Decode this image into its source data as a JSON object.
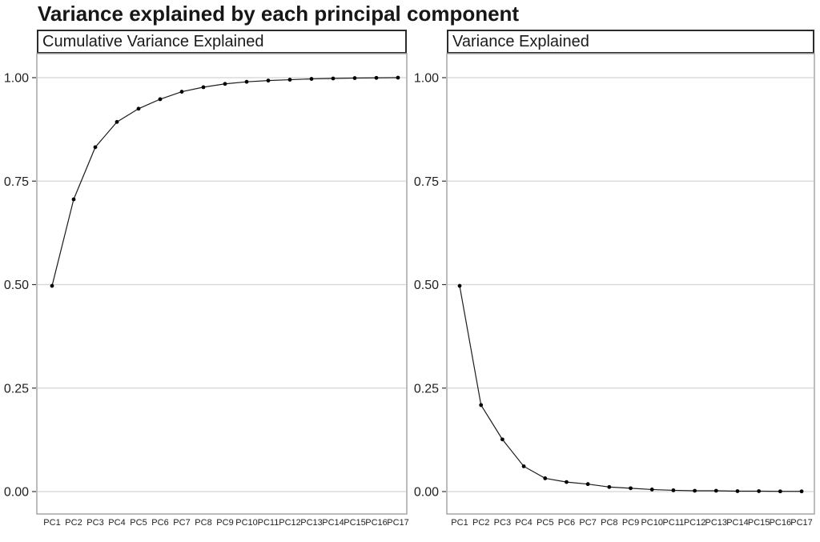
{
  "title": "Variance explained by each principal component",
  "colors": {
    "line": "#1c1c1c",
    "point": "#000000",
    "gridline": "#d4d4d4",
    "panel_border": "#a6a6a6",
    "strip_border": "#2b2b2b",
    "tick": "#333333",
    "text": "#1f1f1f",
    "title_text": "#171717"
  },
  "chart_data": [
    {
      "type": "line",
      "title": "Cumulative Variance Explained",
      "categories": [
        "PC1",
        "PC2",
        "PC3",
        "PC4",
        "PC5",
        "PC6",
        "PC7",
        "PC8",
        "PC9",
        "PC10",
        "PC11",
        "PC12",
        "PC13",
        "PC14",
        "PC15",
        "PC16",
        "PC17"
      ],
      "values": [
        0.497,
        0.706,
        0.832,
        0.893,
        0.925,
        0.948,
        0.966,
        0.977,
        0.985,
        0.99,
        0.993,
        0.995,
        0.997,
        0.998,
        0.999,
        0.9995,
        1.0
      ],
      "xlabel": "",
      "ylabel": "",
      "ylim": [
        0,
        1.04
      ],
      "yticks": [
        0,
        0.25,
        0.5,
        0.75,
        1
      ],
      "ytick_labels": [
        "0.00",
        "0.25",
        "0.50",
        "0.75",
        "1.00"
      ],
      "grid": true,
      "legend": "none",
      "marker": "point"
    },
    {
      "type": "line",
      "title": "Variance Explained",
      "categories": [
        "PC1",
        "PC2",
        "PC3",
        "PC4",
        "PC5",
        "PC6",
        "PC7",
        "PC8",
        "PC9",
        "PC10",
        "PC11",
        "PC12",
        "PC13",
        "PC14",
        "PC15",
        "PC16",
        "PC17"
      ],
      "values": [
        0.497,
        0.209,
        0.126,
        0.061,
        0.032,
        0.023,
        0.018,
        0.011,
        0.008,
        0.005,
        0.003,
        0.002,
        0.002,
        0.001,
        0.001,
        0.0005,
        0.0005
      ],
      "xlabel": "",
      "ylabel": "",
      "ylim": [
        0,
        1.04
      ],
      "yticks": [
        0,
        0.25,
        0.5,
        0.75,
        1
      ],
      "ytick_labels": [
        "0.00",
        "0.25",
        "0.50",
        "0.75",
        "1.00"
      ],
      "grid": true,
      "legend": "none",
      "marker": "point"
    }
  ]
}
